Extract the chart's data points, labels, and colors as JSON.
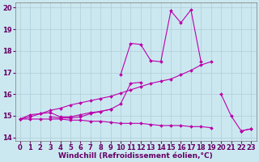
{
  "background_color": "#cbe8f0",
  "grid_color": "#b0cdd8",
  "line_color": "#bb00aa",
  "xlabel": "Windchill (Refroidissement éolien,°C)",
  "ylim": [
    13.85,
    20.25
  ],
  "xlim": [
    -0.5,
    23.5
  ],
  "xticks": [
    0,
    1,
    2,
    3,
    4,
    5,
    6,
    7,
    8,
    9,
    10,
    11,
    12,
    13,
    14,
    15,
    16,
    17,
    18,
    19,
    20,
    21,
    22,
    23
  ],
  "yticks": [
    14,
    15,
    16,
    17,
    18,
    19,
    20
  ],
  "xlabel_fontsize": 6.5,
  "tick_fontsize": 6.0,
  "line_upper": [
    null,
    null,
    null,
    null,
    null,
    null,
    null,
    null,
    null,
    null,
    16.9,
    18.35,
    18.3,
    17.55,
    17.5,
    19.85,
    19.3,
    19.9,
    17.5,
    null,
    16.0,
    15.0,
    14.3,
    14.4
  ],
  "line_straight": [
    14.85,
    14.95,
    15.1,
    15.25,
    15.35,
    15.5,
    15.6,
    15.7,
    15.8,
    15.9,
    16.05,
    16.2,
    16.35,
    16.5,
    16.6,
    16.7,
    16.9,
    17.1,
    17.35,
    17.5,
    null,
    null,
    null,
    null
  ],
  "line_mid1": [
    14.85,
    15.05,
    15.1,
    15.15,
    14.95,
    14.95,
    15.05,
    15.15,
    15.2,
    15.3,
    15.55,
    16.5,
    16.55,
    null,
    null,
    null,
    null,
    null,
    null,
    null,
    null,
    null,
    null,
    null
  ],
  "line_mid2": [
    null,
    null,
    null,
    14.95,
    14.9,
    14.9,
    14.95,
    15.1,
    15.2,
    15.3,
    null,
    null,
    null,
    null,
    null,
    null,
    null,
    null,
    null,
    null,
    null,
    null,
    null,
    null
  ],
  "line_lower": [
    14.85,
    14.85,
    14.85,
    14.85,
    14.85,
    14.8,
    14.8,
    14.75,
    14.75,
    14.7,
    14.65,
    14.65,
    14.65,
    14.6,
    14.55,
    14.55,
    14.55,
    14.5,
    14.5,
    14.45,
    null,
    null,
    14.3,
    14.4
  ]
}
